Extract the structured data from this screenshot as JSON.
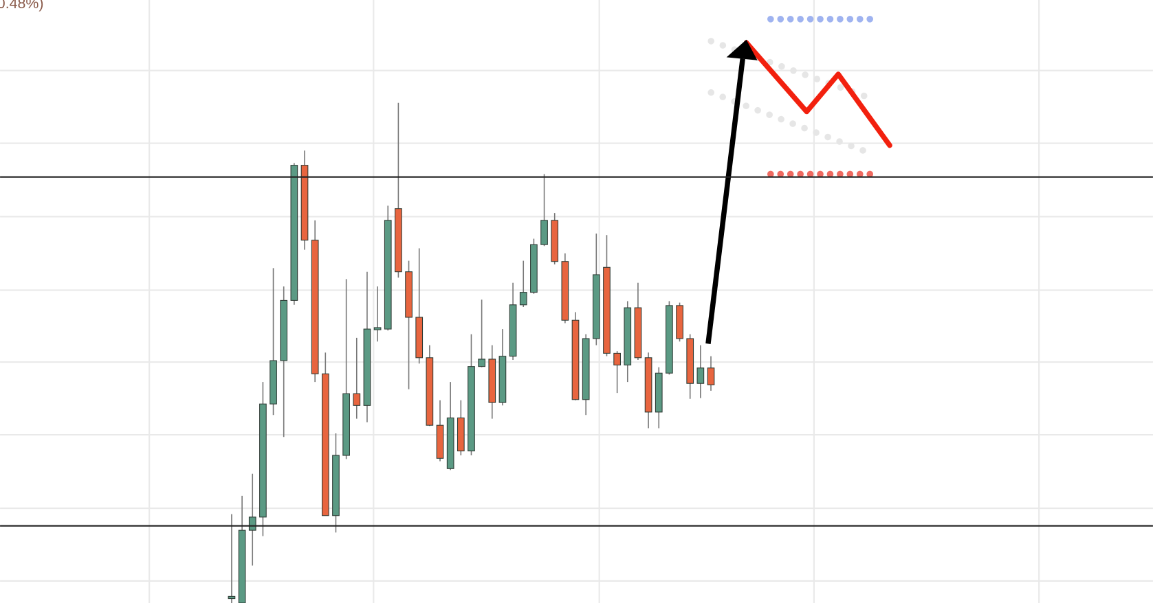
{
  "chart_data": {
    "type": "candlestick",
    "annotation": "0.48%)",
    "ylim": [
      0,
      821
    ],
    "up_color": "#5b9a84",
    "down_color": "#e8653f",
    "levels": [
      580,
      105
    ],
    "open": [
      6,
      0,
      99,
      117,
      271,
      330,
      412,
      596,
      494,
      312,
      119,
      201,
      285,
      269,
      372,
      373,
      537,
      451,
      389,
      334,
      242,
      183,
      252,
      207,
      322,
      332,
      273,
      336,
      406,
      423,
      488,
      521,
      465,
      385,
      277,
      360,
      457,
      340,
      324,
      402,
      334,
      260,
      313,
      405,
      360,
      299,
      320
    ],
    "high": [
      121,
      146,
      176,
      301,
      456,
      431,
      599,
      616,
      521,
      341,
      231,
      441,
      361,
      451,
      431,
      541,
      681,
      466,
      483,
      351,
      276,
      301,
      276,
      366,
      413,
      351,
      373,
      436,
      466,
      496,
      584,
      531,
      476,
      396,
      366,
      503,
      501,
      343,
      411,
      436,
      341,
      321,
      411,
      409,
      366,
      351,
      336
    ],
    "low": [
      0,
      0,
      51,
      91,
      256,
      226,
      406,
      481,
      301,
      119,
      96,
      196,
      251,
      246,
      356,
      371,
      443,
      291,
      326,
      241,
      193,
      181,
      201,
      201,
      321,
      251,
      269,
      331,
      403,
      421,
      486,
      461,
      381,
      276,
      256,
      351,
      336,
      286,
      301,
      331,
      238,
      238,
      311,
      356,
      278,
      279,
      289
    ],
    "close": [
      9,
      99,
      117,
      271,
      330,
      412,
      596,
      494,
      312,
      119,
      201,
      285,
      269,
      373,
      375,
      521,
      451,
      389,
      334,
      242,
      197,
      252,
      207,
      322,
      332,
      273,
      336,
      406,
      423,
      488,
      521,
      465,
      385,
      277,
      360,
      447,
      340,
      324,
      402,
      334,
      260,
      313,
      405,
      360,
      299,
      320,
      297
    ]
  }
}
